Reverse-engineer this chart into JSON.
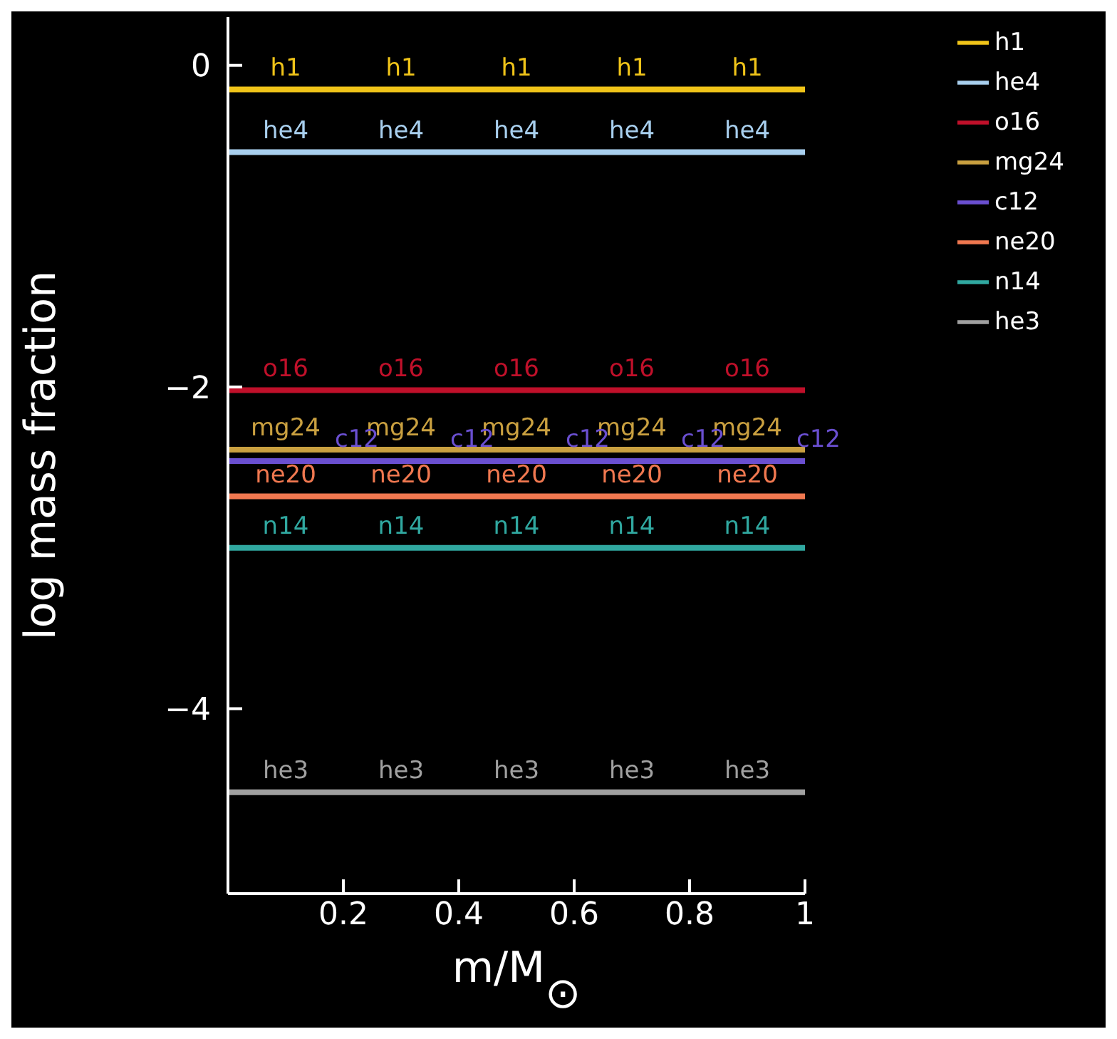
{
  "chart_data": {
    "type": "line",
    "xlabel": "m/M$_{⊙}$",
    "ylabel": "log mass fraction",
    "x": [
      0,
      0.1,
      0.3,
      0.5,
      0.7,
      0.9,
      1
    ],
    "series": [
      {
        "name": "h1",
        "color": "#f0c419",
        "values": [
          -0.15,
          -0.15,
          -0.15,
          -0.15,
          -0.15,
          -0.15,
          -0.15
        ]
      },
      {
        "name": "he4",
        "color": "#a8cfee",
        "values": [
          -0.54,
          -0.54,
          -0.54,
          -0.54,
          -0.54,
          -0.54,
          -0.54
        ]
      },
      {
        "name": "o16",
        "color": "#c0102a",
        "values": [
          -2.02,
          -2.02,
          -2.02,
          -2.02,
          -2.02,
          -2.02,
          -2.02
        ]
      },
      {
        "name": "mg24",
        "color": "#c9a040",
        "values": [
          -2.39,
          -2.39,
          -2.39,
          -2.39,
          -2.39,
          -2.39,
          -2.39
        ]
      },
      {
        "name": "c12",
        "color": "#6a4fd0",
        "values": [
          -2.46,
          -2.46,
          -2.46,
          -2.46,
          -2.46,
          -2.46,
          -2.46
        ]
      },
      {
        "name": "ne20",
        "color": "#f07850",
        "values": [
          -2.68,
          -2.68,
          -2.68,
          -2.68,
          -2.68,
          -2.68,
          -2.68
        ]
      },
      {
        "name": "n14",
        "color": "#30a8a0",
        "values": [
          -3.0,
          -3.0,
          -3.0,
          -3.0,
          -3.0,
          -3.0,
          -3.0
        ]
      },
      {
        "name": "he3",
        "color": "#a0a0a0",
        "values": [
          -4.52,
          -4.52,
          -4.52,
          -4.52,
          -4.52,
          -4.52,
          -4.52
        ]
      }
    ],
    "xlim": [
      0,
      1
    ],
    "xticks": [
      0.2,
      0.4,
      0.6,
      0.8,
      1
    ],
    "ylim": [
      -5.15,
      0.3
    ],
    "yticks": [
      0,
      -2,
      -4
    ],
    "grid": false,
    "legend": "top right",
    "marker": "none",
    "line_style": "solid"
  }
}
